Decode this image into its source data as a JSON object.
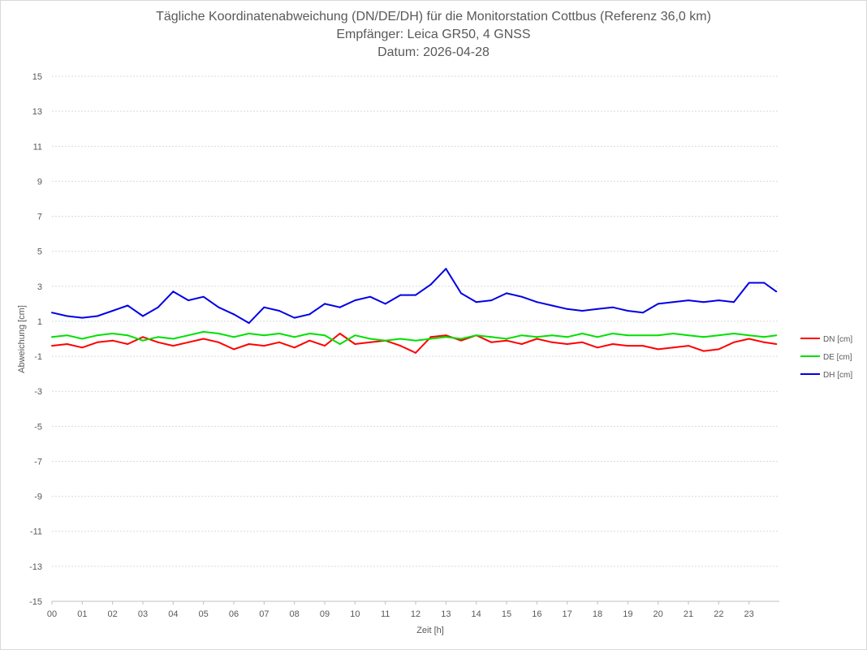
{
  "title_lines": [
    "Tägliche Koordinatenabweichung (DN/DE/DH) für die Monitorstation Cottbus (Referenz 36,0 km)",
    "Empfänger: Leica GR50, 4 GNSS",
    "Datum: 2026-04-28"
  ],
  "chart_data": {
    "type": "line",
    "xlabel": "Zeit [h]",
    "ylabel": "Abweichung [cm]",
    "xlim": [
      0,
      24
    ],
    "ylim": [
      -15,
      15
    ],
    "x_tick_labels": [
      "00",
      "01",
      "02",
      "03",
      "04",
      "05",
      "06",
      "07",
      "08",
      "09",
      "10",
      "11",
      "12",
      "13",
      "14",
      "15",
      "16",
      "17",
      "18",
      "19",
      "20",
      "21",
      "22",
      "23"
    ],
    "y_tick_labels": [
      "15",
      "13",
      "11",
      "9",
      "7",
      "5",
      "3",
      "1",
      "-1",
      "-3",
      "-5",
      "-7",
      "-9",
      "-11",
      "-13",
      "-15"
    ],
    "y_ticks": [
      15,
      13,
      11,
      9,
      7,
      5,
      3,
      1,
      -1,
      -3,
      -5,
      -7,
      -9,
      -11,
      -13,
      -15
    ],
    "grid": true,
    "legend_position": "right",
    "x": [
      0,
      0.5,
      1,
      1.5,
      2,
      2.5,
      3,
      3.5,
      4,
      4.5,
      5,
      5.5,
      6,
      6.5,
      7,
      7.5,
      8,
      8.5,
      9,
      9.5,
      10,
      10.5,
      11,
      11.5,
      12,
      12.5,
      13,
      13.5,
      14,
      14.5,
      15,
      15.5,
      16,
      16.5,
      17,
      17.5,
      18,
      18.5,
      19,
      19.5,
      20,
      20.5,
      21,
      21.5,
      22,
      22.5,
      23,
      23.5,
      23.9
    ],
    "series": [
      {
        "name": "DN [cm]",
        "color": "#ff0000",
        "values": [
          -0.4,
          -0.3,
          -0.5,
          -0.2,
          -0.1,
          -0.3,
          0.1,
          -0.2,
          -0.4,
          -0.2,
          0.0,
          -0.2,
          -0.6,
          -0.3,
          -0.4,
          -0.2,
          -0.5,
          -0.1,
          -0.4,
          0.3,
          -0.3,
          -0.2,
          -0.1,
          -0.4,
          -0.8,
          0.1,
          0.2,
          -0.1,
          0.2,
          -0.2,
          -0.1,
          -0.3,
          0.0,
          -0.2,
          -0.3,
          -0.2,
          -0.5,
          -0.3,
          -0.4,
          -0.4,
          -0.6,
          -0.5,
          -0.4,
          -0.7,
          -0.6,
          -0.2,
          0.0,
          -0.2,
          -0.3
        ]
      },
      {
        "name": "DE [cm]",
        "color": "#00e000",
        "values": [
          0.1,
          0.2,
          0.0,
          0.2,
          0.3,
          0.2,
          -0.1,
          0.1,
          0.0,
          0.2,
          0.4,
          0.3,
          0.1,
          0.3,
          0.2,
          0.3,
          0.1,
          0.3,
          0.2,
          -0.3,
          0.2,
          0.0,
          -0.1,
          0.0,
          -0.1,
          0.0,
          0.1,
          0.0,
          0.2,
          0.1,
          0.0,
          0.2,
          0.1,
          0.2,
          0.1,
          0.3,
          0.1,
          0.3,
          0.2,
          0.2,
          0.2,
          0.3,
          0.2,
          0.1,
          0.2,
          0.3,
          0.2,
          0.1,
          0.2
        ]
      },
      {
        "name": "DH [cm]",
        "color": "#0000e6",
        "values": [
          1.5,
          1.3,
          1.2,
          1.3,
          1.6,
          1.9,
          1.3,
          1.8,
          2.7,
          2.2,
          2.4,
          1.8,
          1.4,
          0.9,
          1.8,
          1.6,
          1.2,
          1.4,
          2.0,
          1.8,
          2.2,
          2.4,
          2.0,
          2.5,
          2.5,
          3.1,
          4.0,
          2.6,
          2.1,
          2.2,
          2.6,
          2.4,
          2.1,
          1.9,
          1.7,
          1.6,
          1.7,
          1.8,
          1.6,
          1.5,
          2.0,
          2.1,
          2.2,
          2.1,
          2.2,
          2.1,
          3.2,
          3.2,
          2.7
        ]
      }
    ]
  }
}
